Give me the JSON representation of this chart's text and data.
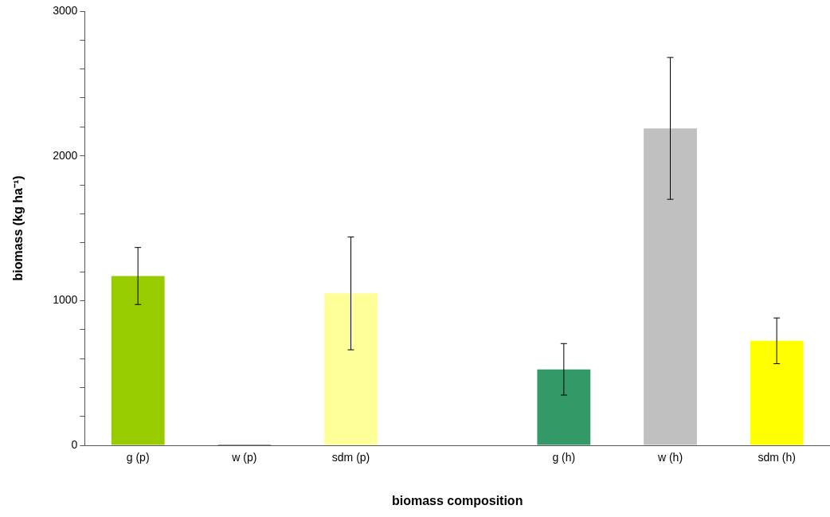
{
  "chart_data": {
    "type": "bar",
    "xlabel": "biomass composition",
    "ylabel": "biomass (kg ha⁻¹)",
    "categories": [
      "g (p)",
      "w (p)",
      "sdm (p)",
      null,
      "g (h)",
      "w (h)",
      "sdm (h)"
    ],
    "values": [
      1170,
      5,
      1050,
      null,
      525,
      2190,
      722
    ],
    "errors": [
      197,
      null,
      390,
      null,
      178,
      490,
      158
    ],
    "colors": [
      "#99cc00",
      "#333333",
      "#ffff99",
      "#ffffff",
      "#339966",
      "#c0c0c0",
      "#ffff00"
    ],
    "ylim": [
      0,
      3000
    ],
    "yticks": [
      0,
      {
        "value": 200,
        "label": null
      },
      {
        "value": 400,
        "label": null
      },
      {
        "value": 600,
        "label": null
      },
      {
        "value": 800,
        "label": null
      },
      1000,
      {
        "value": 1200,
        "label": null
      },
      {
        "value": 1400,
        "label": null
      },
      {
        "value": 1600,
        "label": null
      },
      {
        "value": 1800,
        "label": null
      },
      2000,
      {
        "value": 2200,
        "label": null
      },
      {
        "value": 2400,
        "label": null
      },
      {
        "value": 2600,
        "label": null
      },
      {
        "value": 2800,
        "label": null
      },
      3000
    ],
    "grid": false,
    "legend": false
  }
}
